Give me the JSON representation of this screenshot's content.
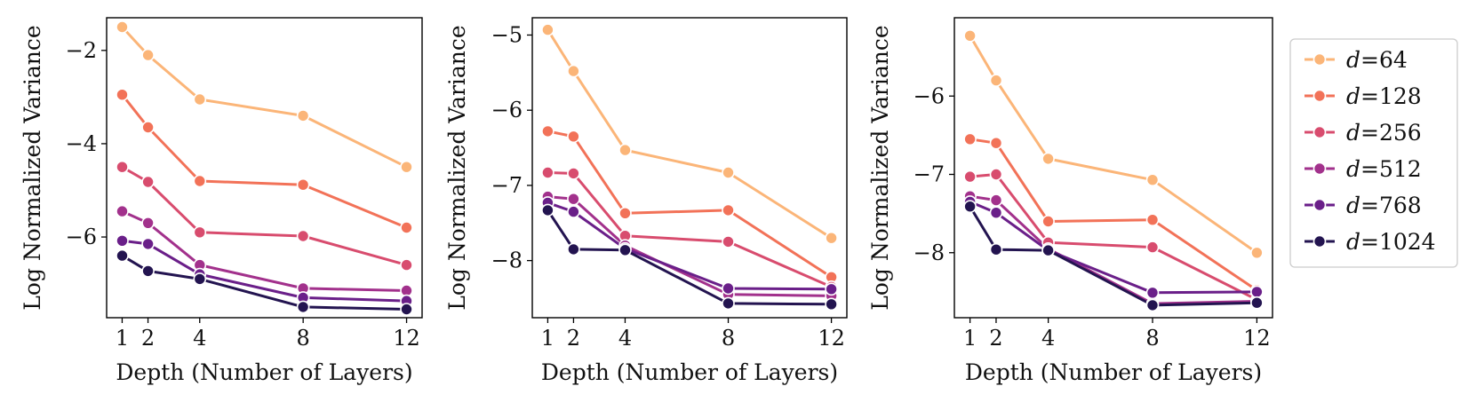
{
  "chart_data": [
    {
      "type": "line",
      "title": "",
      "xlabel": "Depth (Number of Layers)",
      "ylabel": "Log Normalized Variance",
      "x": [
        1,
        2,
        4,
        8,
        12
      ],
      "xticks": [
        "1",
        "2",
        "4",
        "8",
        "12"
      ],
      "xlim": [
        0.4,
        12.6
      ],
      "ylim": [
        -7.73,
        -1.3
      ],
      "yticks": [
        -2,
        -4,
        -6
      ],
      "yticklabels": [
        "−2",
        "−4",
        "−6"
      ],
      "series": [
        {
          "name": "d=64",
          "values": [
            -1.5,
            -2.1,
            -3.05,
            -3.4,
            -4.5
          ]
        },
        {
          "name": "d=128",
          "values": [
            -2.95,
            -3.65,
            -4.8,
            -4.88,
            -5.8
          ]
        },
        {
          "name": "d=256",
          "values": [
            -4.5,
            -4.82,
            -5.9,
            -5.98,
            -6.6
          ]
        },
        {
          "name": "d=512",
          "values": [
            -5.45,
            -5.7,
            -6.6,
            -7.1,
            -7.15
          ]
        },
        {
          "name": "d=768",
          "values": [
            -6.08,
            -6.15,
            -6.8,
            -7.3,
            -7.37
          ]
        },
        {
          "name": "d=1024",
          "values": [
            -6.4,
            -6.73,
            -6.9,
            -7.5,
            -7.55
          ]
        }
      ]
    },
    {
      "type": "line",
      "title": "",
      "xlabel": "Depth (Number of Layers)",
      "ylabel": "Log Normalized Variance",
      "x": [
        1,
        2,
        4,
        8,
        12
      ],
      "xticks": [
        "1",
        "2",
        "4",
        "8",
        "12"
      ],
      "xlim": [
        0.4,
        12.6
      ],
      "ylim": [
        -8.76,
        -4.77
      ],
      "yticks": [
        -5,
        -6,
        -7,
        -8
      ],
      "yticklabels": [
        "−5",
        "−6",
        "−7",
        "−8"
      ],
      "series": [
        {
          "name": "d=64",
          "values": [
            -4.93,
            -5.48,
            -6.53,
            -6.83,
            -7.7
          ]
        },
        {
          "name": "d=128",
          "values": [
            -6.28,
            -6.35,
            -7.37,
            -7.33,
            -8.22
          ]
        },
        {
          "name": "d=256",
          "values": [
            -6.83,
            -6.84,
            -7.67,
            -7.75,
            -8.35
          ]
        },
        {
          "name": "d=512",
          "values": [
            -7.15,
            -7.18,
            -7.8,
            -8.45,
            -8.47
          ]
        },
        {
          "name": "d=768",
          "values": [
            -7.23,
            -7.35,
            -7.84,
            -8.37,
            -8.38
          ]
        },
        {
          "name": "d=1024",
          "values": [
            -7.33,
            -7.85,
            -7.86,
            -8.57,
            -8.58
          ]
        }
      ]
    },
    {
      "type": "line",
      "title": "",
      "xlabel": "Depth (Number of Layers)",
      "ylabel": "Log Normalized Variance",
      "x": [
        1,
        2,
        4,
        8,
        12
      ],
      "xticks": [
        "1",
        "2",
        "4",
        "8",
        "12"
      ],
      "xlim": [
        0.4,
        12.6
      ],
      "ylim": [
        -8.83,
        -5.0
      ],
      "yticks": [
        -6,
        -7,
        -8
      ],
      "yticklabels": [
        "−6",
        "−7",
        "−8"
      ],
      "series": [
        {
          "name": "d=64",
          "values": [
            -5.23,
            -5.8,
            -6.8,
            -7.07,
            -8.0
          ]
        },
        {
          "name": "d=128",
          "values": [
            -6.55,
            -6.6,
            -7.6,
            -7.58,
            -8.48
          ]
        },
        {
          "name": "d=256",
          "values": [
            -7.03,
            -7.0,
            -7.87,
            -7.93,
            -8.6
          ]
        },
        {
          "name": "d=512",
          "values": [
            -7.28,
            -7.33,
            -7.95,
            -8.65,
            -8.62
          ]
        },
        {
          "name": "d=768",
          "values": [
            -7.35,
            -7.49,
            -7.97,
            -8.51,
            -8.5
          ]
        },
        {
          "name": "d=1024",
          "values": [
            -7.41,
            -7.96,
            -7.97,
            -8.67,
            -8.64
          ]
        }
      ]
    }
  ],
  "legend": {
    "placement": "right",
    "entries": [
      {
        "prefix": "d",
        "value": "=64",
        "color": "#fbb578"
      },
      {
        "prefix": "d",
        "value": "=128",
        "color": "#f27258"
      },
      {
        "prefix": "d",
        "value": "=256",
        "color": "#d84c6e"
      },
      {
        "prefix": "d",
        "value": "=512",
        "color": "#a2318c"
      },
      {
        "prefix": "d",
        "value": "=768",
        "color": "#6a1f89"
      },
      {
        "prefix": "d",
        "value": "=1024",
        "color": "#231450"
      }
    ]
  }
}
